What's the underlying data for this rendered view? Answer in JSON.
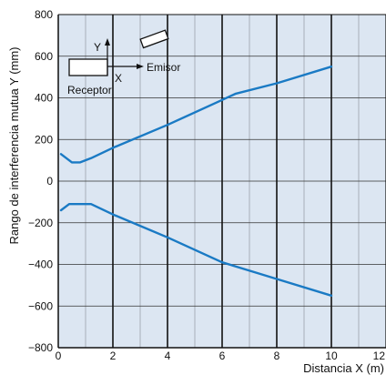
{
  "chart_data": {
    "type": "line",
    "title": "",
    "xlabel": "Distancia X (m)",
    "ylabel": "Rango de interferencia mutua Y (mm)",
    "xlim": [
      0,
      12
    ],
    "ylim": [
      -800,
      800
    ],
    "x_ticks": [
      0,
      2,
      4,
      6,
      8,
      10,
      12
    ],
    "y_ticks": [
      -800,
      -600,
      -400,
      -200,
      0,
      200,
      400,
      600,
      800
    ],
    "x_tick_labels": [
      "0",
      "2",
      "4",
      "6",
      "8",
      "10",
      "12"
    ],
    "y_tick_labels": [
      "−800",
      "−600",
      "−400",
      "−200",
      "0",
      "200",
      "400",
      "600",
      "800"
    ],
    "grid": true,
    "series": [
      {
        "x": [
          0.1,
          0.5,
          0.8,
          1.2,
          2,
          4,
          6,
          6.5,
          8,
          10
        ],
        "y": [
          130,
          90,
          90,
          110,
          160,
          270,
          390,
          420,
          470,
          550
        ]
      },
      {
        "x": [
          0.1,
          0.4,
          1.2,
          2,
          4,
          6,
          8,
          10
        ],
        "y": [
          -140,
          -110,
          -110,
          -160,
          -270,
          -390,
          -470,
          -550
        ]
      }
    ],
    "inset": {
      "y_label": "Y",
      "x_label": "X",
      "emitter_label": "Emisor",
      "receiver_label": "Receptor"
    }
  },
  "colors": {
    "plot_background": "#dce6f2",
    "series_line": "#1a7ac4",
    "grid_major": "#111111",
    "grid_minor": "#333333"
  }
}
